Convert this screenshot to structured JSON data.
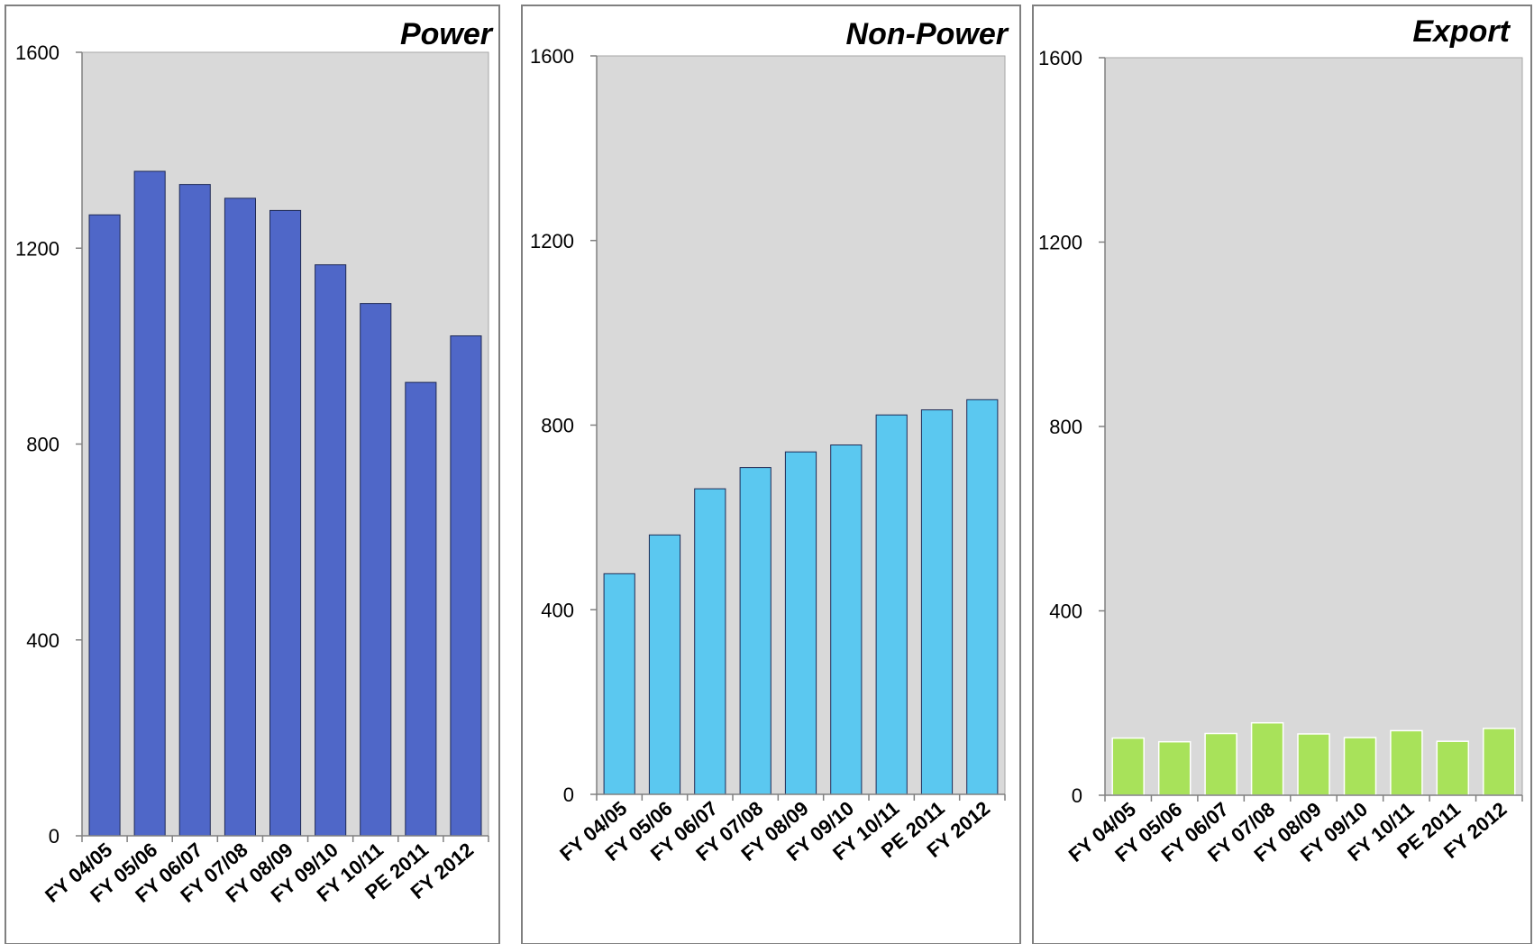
{
  "chart_data": [
    {
      "type": "bar",
      "title": "Power",
      "categories": [
        "FY 04/05",
        "FY 05/06",
        "FY 06/07",
        "FY 07/08",
        "FY 08/09",
        "FY 09/10",
        "FY 10/11",
        "PE 2011",
        "FY 2012"
      ],
      "values": [
        1268,
        1357,
        1330,
        1302,
        1277,
        1166,
        1087,
        926,
        1021
      ],
      "color": "#4F67C8",
      "ylim": [
        0,
        1600
      ],
      "yticks": [
        "0",
        "400",
        "800",
        "1200",
        "1600"
      ],
      "grid": false,
      "xlabel": "",
      "ylabel": ""
    },
    {
      "type": "bar",
      "title": "Non-Power",
      "categories": [
        "FY 04/05",
        "FY 05/06",
        "FY 06/07",
        "FY 07/08",
        "FY 08/09",
        "FY 09/10",
        "FY 10/11",
        "PE 2011",
        "FY 2012"
      ],
      "values": [
        478,
        562,
        662,
        708,
        742,
        757,
        822,
        833,
        855
      ],
      "color": "#5BC8F0",
      "ylim": [
        0,
        1600
      ],
      "yticks": [
        "0",
        "400",
        "800",
        "1200",
        "1600"
      ],
      "grid": false,
      "xlabel": "",
      "ylabel": ""
    },
    {
      "type": "bar",
      "title": "Export",
      "categories": [
        "FY 04/05",
        "FY 05/06",
        "FY 06/07",
        "FY 07/08",
        "FY 08/09",
        "FY 09/10",
        "FY 10/11",
        "PE 2011",
        "FY 2012"
      ],
      "values": [
        124,
        116,
        134,
        157,
        133,
        125,
        140,
        117,
        145
      ],
      "color": "#A8E25A",
      "ylim": [
        0,
        1600
      ],
      "yticks": [
        "0",
        "400",
        "800",
        "1200",
        "1600"
      ],
      "grid": false,
      "xlabel": "",
      "ylabel": ""
    }
  ]
}
